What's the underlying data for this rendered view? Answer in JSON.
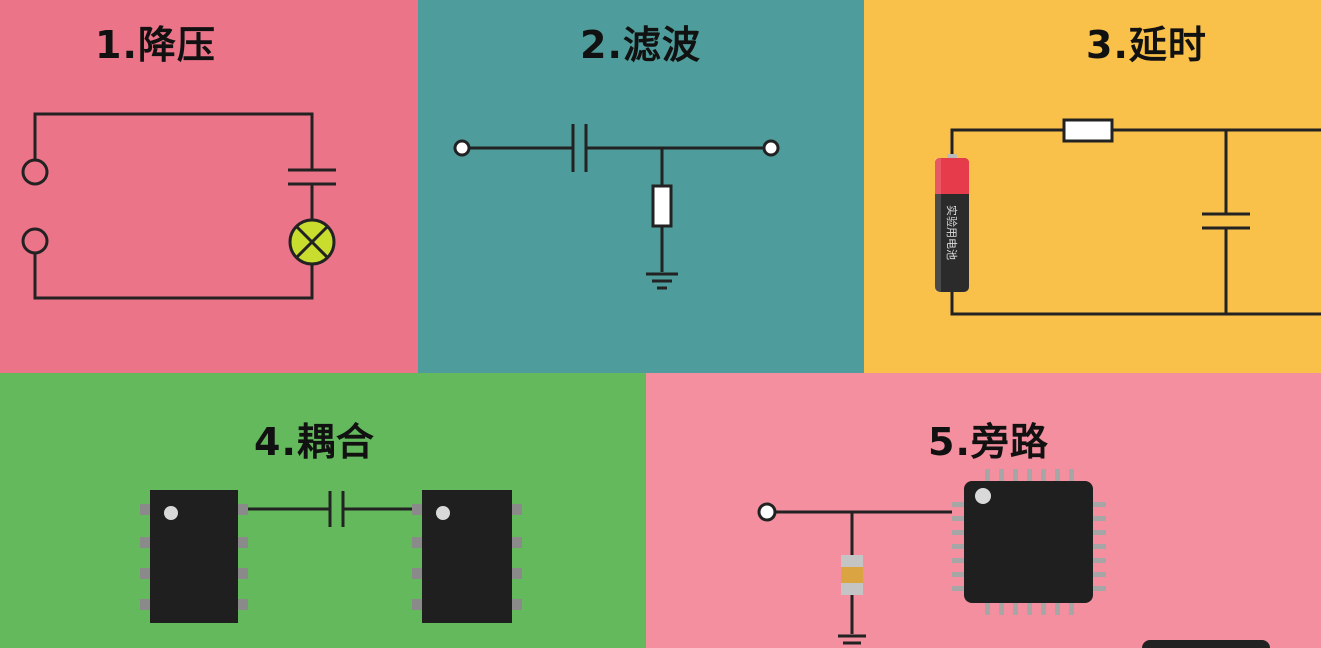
{
  "panels": [
    {
      "id": "step-down",
      "title": "1.降压"
    },
    {
      "id": "filter",
      "title": "2.滤波"
    },
    {
      "id": "delay",
      "title": "3.延时"
    },
    {
      "id": "coupling",
      "title": "4.耦合"
    },
    {
      "id": "bypass",
      "title": "5.旁路"
    }
  ],
  "battery_label": "实验用电池",
  "colors": {
    "panel1": "#ec7489",
    "panel2": "#4e9c9b",
    "panel3": "#f9c04a",
    "panel4": "#64b95d",
    "panel5": "#f38f9e",
    "lamp": "#c8dd2e",
    "chip": "#1f1f1f"
  }
}
